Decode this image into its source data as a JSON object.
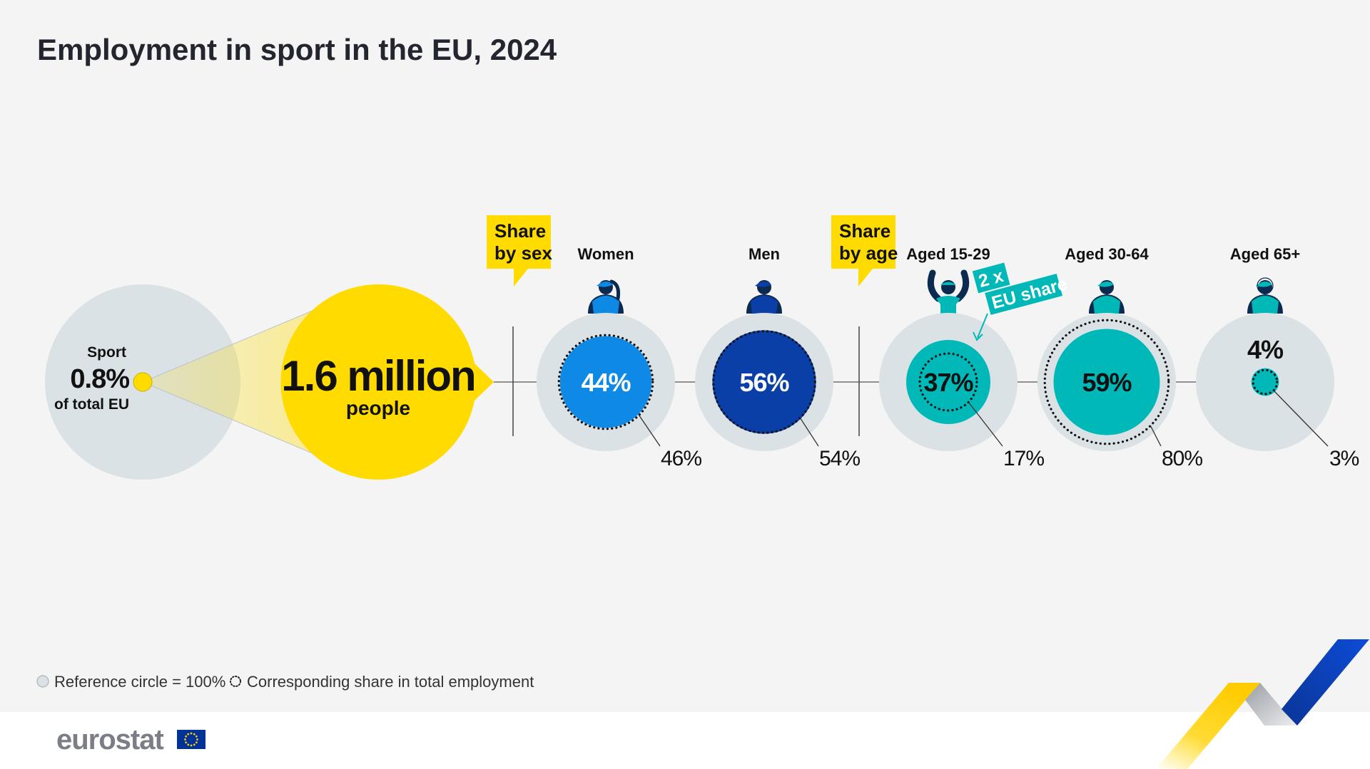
{
  "title": "Employment in sport in the EU, 2024",
  "colors": {
    "background": "#f4f4f4",
    "footer": "#ffffff",
    "reference_circle": "#dbe2e5",
    "yellow": "#ffdb00",
    "women": "#0e8ae6",
    "men": "#0a3fa8",
    "age": "#00b8b8",
    "dark_navy": "#0c2a4f",
    "ribbon_blue": "#0d47c9",
    "ribbon_grey": "#c5c8cc"
  },
  "chart_data": {
    "type": "proportional-area-circles",
    "title": "Employment in sport in the EU, 2024",
    "reference_value_pct": 100,
    "overview": {
      "label_top": "Sport",
      "share_of_total_pct": 0.8,
      "share_display": "0.8%",
      "label_bottom": "of total EU",
      "total_display": "1.6 million",
      "total_value_millions": 1.6,
      "total_unit": "people"
    },
    "groups": [
      {
        "callout": [
          "Share",
          "by sex"
        ],
        "items": [
          {
            "label": "Women",
            "sport_share_pct": 44,
            "sport_display": "44%",
            "total_emp_share_pct": 46,
            "total_display": "46%",
            "color_key": "women",
            "icon": "woman-athlete-icon",
            "text_color": "#ffffff"
          },
          {
            "label": "Men",
            "sport_share_pct": 56,
            "sport_display": "56%",
            "total_emp_share_pct": 54,
            "total_display": "54%",
            "color_key": "men",
            "icon": "man-athlete-icon",
            "text_color": "#ffffff"
          }
        ]
      },
      {
        "callout": [
          "Share",
          "by age"
        ],
        "items": [
          {
            "label": "Aged 15-29",
            "sport_share_pct": 37,
            "sport_display": "37%",
            "total_emp_share_pct": 17,
            "total_display": "17%",
            "color_key": "age",
            "icon": "youth-athlete-cheering-icon",
            "text_color": "#111111"
          },
          {
            "label": "Aged 30-64",
            "sport_share_pct": 59,
            "sport_display": "59%",
            "total_emp_share_pct": 80,
            "total_display": "80%",
            "color_key": "age",
            "icon": "adult-athlete-icon",
            "text_color": "#111111"
          },
          {
            "label": "Aged 65+",
            "sport_share_pct": 4,
            "sport_display": "4%",
            "total_emp_share_pct": 3,
            "total_display": "3%",
            "color_key": "age",
            "icon": "senior-athlete-icon",
            "text_color": "#111111"
          }
        ]
      }
    ],
    "annotation": {
      "line1": "2 x",
      "line2": "EU share",
      "target": "Aged 15-29"
    },
    "legend": [
      {
        "symbol": "reference-circle",
        "text": "Reference circle = 100%"
      },
      {
        "symbol": "dotted-circle",
        "text": "Corresponding share in total employment"
      }
    ]
  },
  "footer": {
    "logo_text": "eurostat",
    "flag": "eu-flag-icon"
  }
}
